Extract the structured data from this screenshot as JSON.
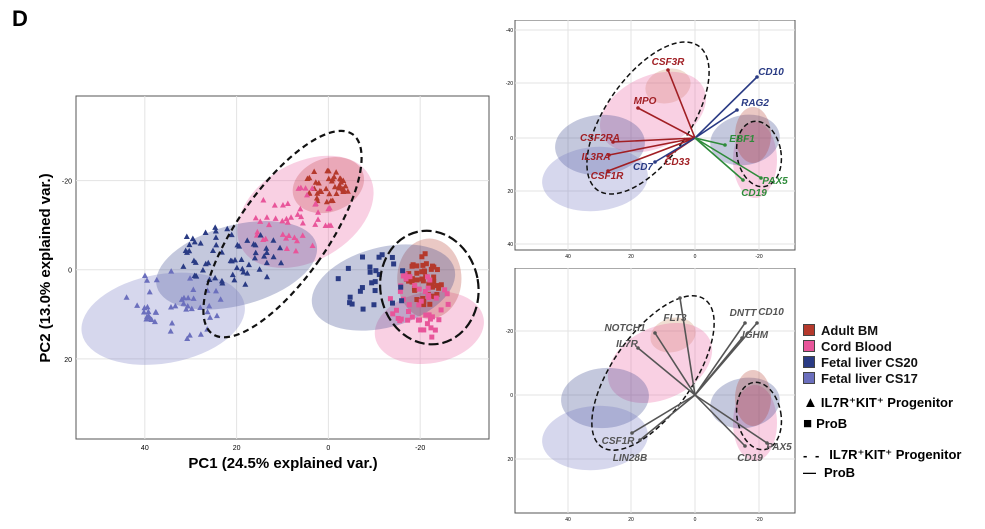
{
  "panel_label": "D",
  "chart_data": [
    {
      "type": "scatter",
      "xlabel": "PC1 (24.5% explained var.)",
      "ylabel": "PC2 (13.0% explained var.)",
      "x_ticks": [
        "40",
        "20",
        "0",
        "-20"
      ],
      "y_ticks": [
        "-20",
        "0",
        "20"
      ],
      "x_reversed": true,
      "y_reversed": true,
      "xlim": [
        55,
        -35
      ],
      "ylim": [
        -39,
        38
      ],
      "grid": true,
      "series": [
        {
          "name": "Adult BM",
          "color": "#b5392c",
          "ellipse": {
            "cx": 0,
            "cy": -19,
            "rx": 8,
            "ry": 6
          }
        },
        {
          "name": "Cord Blood",
          "color": "#e8559a",
          "ellipse": {
            "cx": 5,
            "cy": -13,
            "rx": 16,
            "ry": 11
          }
        },
        {
          "name": "Fetal liver CS20",
          "color": "#2a3b84",
          "ellipse": {
            "cx": 20,
            "cy": -1,
            "rx": 18,
            "ry": 9
          }
        },
        {
          "name": "Fetal liver CS17",
          "color": "#6b6fbd",
          "ellipse": {
            "cx": 36,
            "cy": 11,
            "rx": 18,
            "ry": 10
          }
        },
        {
          "name": "Cord Blood ProB",
          "color": "#e8559a",
          "ellipse": {
            "cx": -22,
            "cy": 13,
            "rx": 12,
            "ry": 8
          }
        },
        {
          "name": "Adult BM ProB",
          "color": "#b5392c",
          "ellipse": {
            "cx": -22,
            "cy": 2,
            "rx": 7,
            "ry": 9
          }
        },
        {
          "name": "Fetal liver CS20 ProB",
          "color": "#2a3b84",
          "ellipse": {
            "cx": -12,
            "cy": 4,
            "rx": 16,
            "ry": 9
          }
        }
      ]
    },
    {
      "type": "biplot",
      "x_ticks": [
        "40",
        "20",
        "0",
        "-20"
      ],
      "y_ticks": [
        "-40",
        "-20",
        "0",
        "20",
        "40"
      ],
      "vectors_red": [
        "CSF3R",
        "MPO",
        "CSF2RA",
        "IL3RA",
        "CSF1R",
        "CD33"
      ],
      "vectors_blue": [
        "CD10",
        "RAG2",
        "CD7"
      ],
      "vectors_green": [
        "EBF1",
        "PAX5",
        "CD19"
      ]
    },
    {
      "type": "biplot",
      "x_ticks": [
        "40",
        "20",
        "0",
        "-20"
      ],
      "y_ticks": [
        "-20",
        "0",
        "20"
      ],
      "vectors": [
        "FLT3",
        "DNTT",
        "CD10",
        "NOTCH1",
        "IGHM",
        "IL7R",
        "CSF1R",
        "LIN28B",
        "CD19",
        "PAX5"
      ]
    }
  ],
  "legend": {
    "items": [
      {
        "label": "Adult BM",
        "color": "#b5392c"
      },
      {
        "label": "Cord Blood",
        "color": "#e8559a"
      },
      {
        "label": "Fetal liver CS20",
        "color": "#2a3b84"
      },
      {
        "label": "Fetal liver CS17",
        "color": "#6b6fbd"
      }
    ],
    "shape_triangle": "IL7R⁺KIT⁺ Progenitor",
    "shape_square": "ProB",
    "line_dashed": "IL7R⁺KIT⁺ Progenitor",
    "line_solid": "ProB"
  }
}
